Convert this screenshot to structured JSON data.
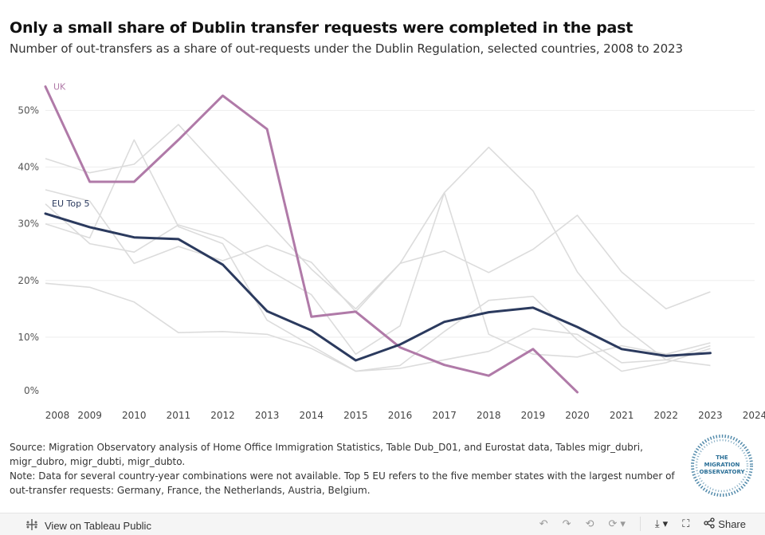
{
  "title": "Only a small share of Dublin transfer requests were completed in the past",
  "subtitle": "Number of out-transfers as a share of out-requests under the Dublin Regulation, selected countries, 2008 to 2023",
  "notes": {
    "source": "Source: Migration Observatory analysis of Home Office Immigration Statistics, Table Dub_D01, and Eurostat data, Tables migr_dubri, migr_dubro, migr_dubti, migr_dubto.",
    "note": "Note: Data for several country-year combinations were not available. Top 5 EU refers to the five member states with the largest number of out-transfer requests: Germany, France, the Netherlands, Austria, Belgium."
  },
  "logo_text": [
    "THE",
    "MIGRATION",
    "OBSERVATORY"
  ],
  "toolbar": {
    "view_label": "View on Tableau Public",
    "share_label": "Share"
  },
  "colors": {
    "uk": "#b07aa8",
    "eu": "#2b3a5e",
    "background_series": "#dcdcdc",
    "grid": "#eeeeee",
    "logo": "#2a6f97"
  },
  "chart_data": {
    "type": "line",
    "title": "Only a small share of Dublin transfer requests were completed in the past",
    "x": [
      2008,
      2009,
      2010,
      2011,
      2012,
      2013,
      2014,
      2015,
      2016,
      2017,
      2018,
      2019,
      2020,
      2021,
      2022,
      2023,
      2024
    ],
    "x_tick_labels": [
      "2008",
      "2009",
      "2010",
      "2011",
      "2012",
      "2013",
      "2014",
      "2015",
      "2016",
      "2017",
      "2018",
      "2019",
      "2020",
      "2021",
      "2022",
      "2023",
      "2024"
    ],
    "y_ticks": [
      0,
      10,
      20,
      30,
      40,
      50
    ],
    "y_tick_labels": [
      "0%",
      "10%",
      "20%",
      "30%",
      "40%",
      "50%"
    ],
    "ylim": [
      0,
      54
    ],
    "xlim": [
      2008,
      2024
    ],
    "grid": "horizontal",
    "series": [
      {
        "name": "UK",
        "label": "UK",
        "highlight": true,
        "values": [
          54.2,
          37.4,
          37.4,
          44.8,
          52.6,
          46.7,
          13.6,
          14.5,
          8.2,
          5.1,
          3.2,
          7.9,
          0.3,
          null,
          null,
          null,
          null
        ]
      },
      {
        "name": "EU Top 5",
        "label": "EU Top 5",
        "highlight": true,
        "values": [
          31.8,
          29.4,
          27.6,
          27.3,
          22.8,
          14.6,
          11.2,
          5.9,
          8.7,
          12.7,
          14.4,
          15.2,
          11.8,
          7.9,
          6.7,
          7.2,
          null
        ]
      },
      {
        "name": "Germany",
        "highlight": false,
        "values": [
          41.5,
          39.0,
          40.5,
          47.5,
          39.0,
          30.5,
          22.0,
          15.0,
          23.0,
          35.5,
          43.5,
          35.8,
          21.5,
          12.0,
          6.0,
          8.5,
          null
        ]
      },
      {
        "name": "France",
        "highlight": false,
        "values": [
          36.0,
          34.0,
          23.0,
          26.0,
          23.5,
          26.2,
          23.2,
          14.5,
          23.0,
          25.2,
          21.4,
          25.5,
          31.5,
          21.5,
          15.0,
          18.0,
          null
        ]
      },
      {
        "name": "the Netherlands",
        "highlight": false,
        "values": [
          30.0,
          27.5,
          44.8,
          29.5,
          26.5,
          13.0,
          8.5,
          4.0,
          5.0,
          11.0,
          16.5,
          17.2,
          9.5,
          4.0,
          5.5,
          8.0,
          null
        ]
      },
      {
        "name": "Austria",
        "highlight": false,
        "values": [
          33.5,
          26.5,
          25.0,
          29.8,
          27.5,
          22.0,
          17.5,
          7.0,
          12.0,
          35.5,
          10.5,
          7.0,
          6.5,
          8.5,
          7.0,
          9.0,
          null
        ]
      },
      {
        "name": "Belgium",
        "highlight": false,
        "values": [
          19.5,
          18.8,
          16.2,
          10.8,
          11.0,
          10.5,
          8.0,
          4.0,
          4.5,
          6.0,
          7.5,
          11.5,
          10.5,
          5.5,
          6.0,
          5.0,
          null
        ]
      }
    ]
  }
}
